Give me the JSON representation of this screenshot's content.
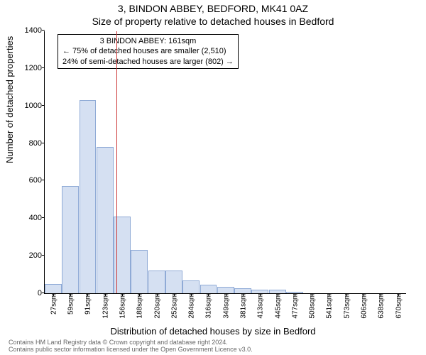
{
  "title_main": "3, BINDON ABBEY, BEDFORD, MK41 0AZ",
  "title_sub": "Size of property relative to detached houses in Bedford",
  "ylabel": "Number of detached properties",
  "xlabel": "Distribution of detached houses by size in Bedford",
  "footer_line1": "Contains HM Land Registry data © Crown copyright and database right 2024.",
  "footer_line2": "Contains public sector information licensed under the Open Government Licence v3.0.",
  "annotation": {
    "line1": "3 BINDON ABBEY: 161sqm",
    "line2": "← 75% of detached houses are smaller (2,510)",
    "line3": "24% of semi-detached houses are larger (802) →"
  },
  "chart": {
    "type": "histogram",
    "background_color": "#ffffff",
    "bar_fill": "#d5e0f2",
    "bar_stroke": "#8faad6",
    "ref_line_color": "#cc3333",
    "ylim": [
      0,
      1400
    ],
    "ytick_step": 200,
    "yticks": [
      0,
      200,
      400,
      600,
      800,
      1000,
      1200,
      1400
    ],
    "xticks": [
      "27sqm",
      "59sqm",
      "91sqm",
      "123sqm",
      "156sqm",
      "188sqm",
      "220sqm",
      "252sqm",
      "284sqm",
      "316sqm",
      "349sqm",
      "381sqm",
      "413sqm",
      "445sqm",
      "477sqm",
      "509sqm",
      "541sqm",
      "573sqm",
      "606sqm",
      "638sqm",
      "670sqm"
    ],
    "ref_line_index": 4.15,
    "values": [
      48,
      570,
      1030,
      780,
      410,
      230,
      120,
      120,
      70,
      45,
      35,
      25,
      20,
      18,
      8,
      0,
      0,
      0,
      0,
      0,
      0
    ],
    "title_fontsize": 14,
    "label_fontsize": 13,
    "tick_fontsize": 11
  }
}
